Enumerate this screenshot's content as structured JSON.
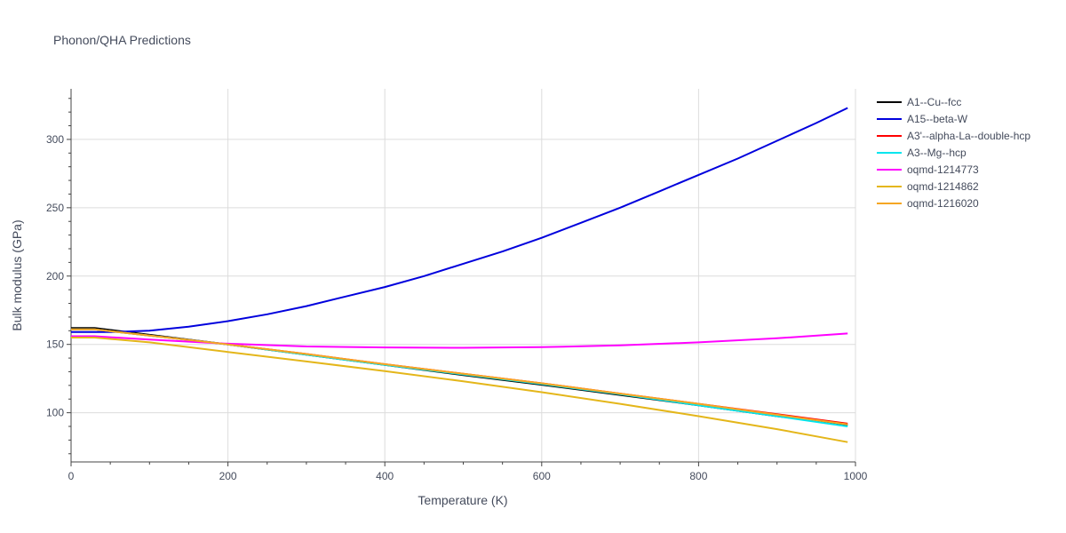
{
  "chart_data": {
    "type": "line",
    "title": "Phonon/QHA Predictions",
    "xlabel": "Temperature (K)",
    "ylabel": "Bulk modulus (GPa)",
    "xlim": [
      0,
      1000
    ],
    "ylim": [
      64,
      337
    ],
    "xticks": [
      0,
      200,
      400,
      600,
      800,
      1000
    ],
    "yticks": [
      100,
      150,
      200,
      250,
      300
    ],
    "grid": true,
    "legend_position": "right",
    "series": [
      {
        "name": "A1--Cu--fcc",
        "color": "#000000",
        "x": [
          0,
          30,
          100,
          200,
          300,
          400,
          500,
          600,
          700,
          800,
          900,
          990
        ],
        "y": [
          162,
          162,
          157,
          150,
          142.5,
          135,
          127.5,
          120.5,
          113,
          105.5,
          97.5,
          91
        ]
      },
      {
        "name": "A15--beta-W",
        "color": "#0000dd",
        "x": [
          0,
          50,
          100,
          150,
          200,
          250,
          300,
          350,
          400,
          450,
          500,
          550,
          600,
          650,
          700,
          750,
          800,
          850,
          900,
          950,
          990
        ],
        "y": [
          159,
          159,
          160,
          163,
          167,
          172,
          178,
          185,
          192,
          200,
          209,
          218,
          228,
          239,
          250,
          262,
          274,
          286,
          299,
          312,
          323
        ]
      },
      {
        "name": "A3'--alpha-La--double-hcp",
        "color": "#ff0000",
        "x": [
          0,
          30,
          100,
          200,
          300,
          400,
          500,
          600,
          700,
          800,
          900,
          990
        ],
        "y": [
          161,
          161,
          156.5,
          150,
          143,
          135.5,
          128.5,
          121.5,
          114,
          106.5,
          99,
          92
        ]
      },
      {
        "name": "A3--Mg--hcp",
        "color": "#00e5ee",
        "x": [
          0,
          30,
          100,
          200,
          300,
          400,
          500,
          600,
          700,
          800,
          900,
          990
        ],
        "y": [
          161,
          161,
          156.5,
          150,
          142.5,
          135,
          128,
          121,
          113.5,
          105.5,
          97.5,
          90
        ]
      },
      {
        "name": "oqmd-1214773",
        "color": "#ff00ff",
        "x": [
          0,
          30,
          100,
          200,
          300,
          400,
          500,
          600,
          700,
          800,
          900,
          990
        ],
        "y": [
          156,
          156,
          153.5,
          150.5,
          148.5,
          147.8,
          147.5,
          148,
          149.3,
          151.5,
          154.5,
          158
        ]
      },
      {
        "name": "oqmd-1214862",
        "color": "#e4b61a",
        "x": [
          0,
          30,
          100,
          200,
          300,
          400,
          500,
          600,
          700,
          800,
          900,
          990
        ],
        "y": [
          155,
          155,
          151.5,
          144.5,
          137.5,
          130.5,
          123,
          115,
          106.5,
          97.5,
          88,
          78.5
        ]
      },
      {
        "name": "oqmd-1216020",
        "color": "#f5a623",
        "x": [
          0,
          30,
          100,
          200,
          300,
          400,
          500,
          600,
          700,
          800,
          900,
          990
        ],
        "y": [
          161,
          161,
          156.5,
          150,
          143,
          135.5,
          128.5,
          121.5,
          114,
          106.5,
          98.5,
          91.5
        ]
      }
    ]
  }
}
